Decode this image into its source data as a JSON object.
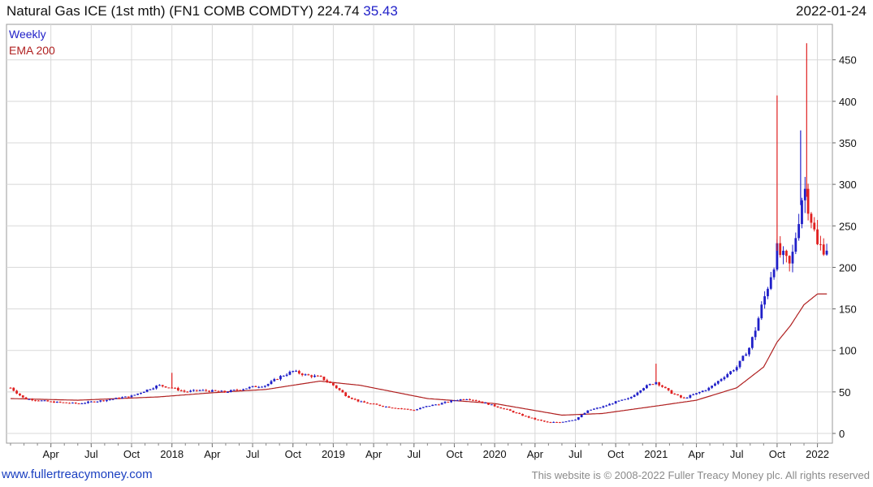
{
  "header": {
    "title": "Natural Gas ICE (1st mth) (FN1 COMB COMDTY)",
    "last_price": "224.74",
    "change": "35.43",
    "date": "2022-01-24"
  },
  "footer": {
    "site": "www.fullertreacymoney.com",
    "copyright": "This website is © 2008-2022 Fuller Treacy Money plc. All rights reserved"
  },
  "colors": {
    "up": "#1f1fc8",
    "down": "#e02020",
    "ema": "#b02020",
    "grid": "#d8d8d8"
  },
  "chart_data": {
    "type": "candlestick",
    "legend": [
      "Weekly",
      "EMA 200"
    ],
    "legend_colors": [
      "#1f1fc8",
      "#b02020"
    ],
    "ylim": [
      0,
      480
    ],
    "y_ticks": [
      0,
      50,
      100,
      150,
      200,
      250,
      300,
      350,
      400,
      450
    ],
    "x_tick_labels": [
      "Apr",
      "Jul",
      "Oct",
      "2018",
      "Apr",
      "Jul",
      "Oct",
      "2019",
      "Apr",
      "Jul",
      "Oct",
      "2020",
      "Apr",
      "Jul",
      "Oct",
      "2021",
      "Apr",
      "Jul",
      "Oct",
      "2022"
    ],
    "x_range": [
      "2017-01",
      "2022-01"
    ],
    "grid": true,
    "series": [
      {
        "name": "Weekly",
        "close_anchors": [
          [
            "2017-01",
            55
          ],
          [
            "2017-02",
            42
          ],
          [
            "2017-04",
            38
          ],
          [
            "2017-06",
            36
          ],
          [
            "2017-08",
            40
          ],
          [
            "2017-10",
            45
          ],
          [
            "2017-12",
            58
          ],
          [
            "2018-01",
            55
          ],
          [
            "2018-02",
            50
          ],
          [
            "2018-03",
            52
          ],
          [
            "2018-05",
            50
          ],
          [
            "2018-07",
            56
          ],
          [
            "2018-08",
            58
          ],
          [
            "2018-09",
            68
          ],
          [
            "2018-10",
            75
          ],
          [
            "2018-11",
            70
          ],
          [
            "2018-12",
            68
          ],
          [
            "2019-01",
            58
          ],
          [
            "2019-02",
            45
          ],
          [
            "2019-03",
            38
          ],
          [
            "2019-05",
            32
          ],
          [
            "2019-07",
            28
          ],
          [
            "2019-08",
            33
          ],
          [
            "2019-09",
            36
          ],
          [
            "2019-10",
            40
          ],
          [
            "2019-11",
            42
          ],
          [
            "2019-12",
            38
          ],
          [
            "2020-01",
            33
          ],
          [
            "2020-02",
            28
          ],
          [
            "2020-03",
            22
          ],
          [
            "2020-04",
            17
          ],
          [
            "2020-05",
            13
          ],
          [
            "2020-06",
            14
          ],
          [
            "2020-07",
            17
          ],
          [
            "2020-08",
            28
          ],
          [
            "2020-09",
            32
          ],
          [
            "2020-10",
            38
          ],
          [
            "2020-11",
            42
          ],
          [
            "2020-12",
            55
          ],
          [
            "2021-01",
            62
          ],
          [
            "2021-02",
            50
          ],
          [
            "2021-03",
            42
          ],
          [
            "2021-04",
            48
          ],
          [
            "2021-05",
            55
          ],
          [
            "2021-06",
            68
          ],
          [
            "2021-07",
            80
          ],
          [
            "2021-08",
            105
          ],
          [
            "2021-09",
            160
          ],
          [
            "2021-10",
            220
          ],
          [
            "2021-11",
            200
          ],
          [
            "2021-12",
            300
          ],
          [
            "2022-01",
            225
          ]
        ]
      },
      {
        "name": "EMA 200",
        "anchors": [
          [
            "2017-01",
            42
          ],
          [
            "2017-06",
            40
          ],
          [
            "2017-12",
            44
          ],
          [
            "2018-04",
            49
          ],
          [
            "2018-08",
            53
          ],
          [
            "2018-12",
            63
          ],
          [
            "2019-03",
            58
          ],
          [
            "2019-08",
            42
          ],
          [
            "2020-01",
            36
          ],
          [
            "2020-06",
            22
          ],
          [
            "2020-09",
            24
          ],
          [
            "2021-01",
            33
          ],
          [
            "2021-04",
            40
          ],
          [
            "2021-07",
            55
          ],
          [
            "2021-09",
            80
          ],
          [
            "2021-10",
            110
          ],
          [
            "2021-11",
            130
          ],
          [
            "2021-12",
            155
          ],
          [
            "2022-01",
            168
          ]
        ]
      }
    ],
    "spikes": [
      [
        "2021-10",
        407
      ],
      [
        "2021-12",
        470
      ],
      [
        "2021-12",
        365
      ],
      [
        "2021-01",
        84
      ],
      [
        "2018-01",
        73
      ]
    ]
  }
}
